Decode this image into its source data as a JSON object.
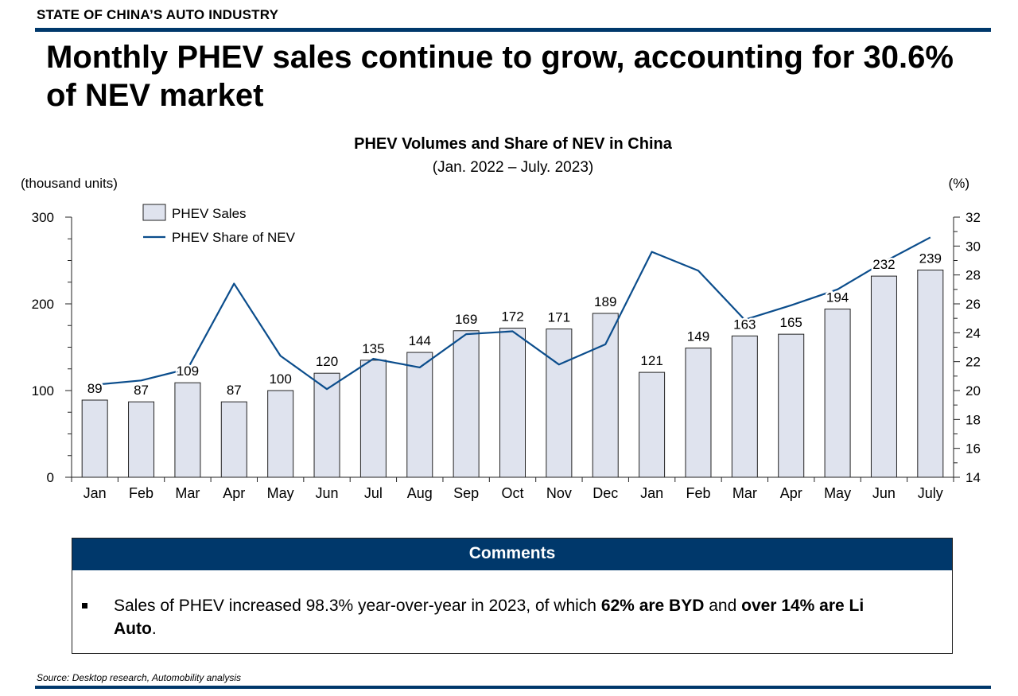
{
  "header": {
    "section": "STATE OF CHINA’S AUTO INDUSTRY",
    "headline": "Monthly PHEV sales continue to grow, accounting for 30.6% of NEV market"
  },
  "chart_data": {
    "type": "bar",
    "title": "PHEV Volumes and Share of NEV in China",
    "subtitle": "(Jan. 2022 – July. 2023)",
    "ylabel": "(thousand units)",
    "y2label": "(%)",
    "ylim": [
      0,
      300
    ],
    "y2lim": [
      14,
      32
    ],
    "yticks": [
      0,
      100,
      200,
      300
    ],
    "y2ticks": [
      14,
      16,
      18,
      20,
      22,
      24,
      26,
      28,
      30,
      32
    ],
    "categories": [
      "Jan",
      "Feb",
      "Mar",
      "Apr",
      "May",
      "Jun",
      "Jul",
      "Aug",
      "Sep",
      "Oct",
      "Nov",
      "Dec",
      "Jan",
      "Feb",
      "Mar",
      "Apr",
      "May",
      "Jun",
      "July"
    ],
    "legend_position": "top-left",
    "grid": false,
    "series": [
      {
        "name": "PHEV Sales",
        "type": "bar",
        "axis": "left",
        "color": "#dfe3ee",
        "values": [
          89,
          87,
          109,
          87,
          100,
          120,
          135,
          144,
          169,
          172,
          171,
          189,
          121,
          149,
          163,
          165,
          194,
          232,
          239
        ]
      },
      {
        "name": "PHEV Share of NEV",
        "type": "line",
        "axis": "right",
        "color": "#0b4d8c",
        "values": [
          20.4,
          20.7,
          21.5,
          27.4,
          22.4,
          20.1,
          22.2,
          21.6,
          23.9,
          24.1,
          21.8,
          23.2,
          29.6,
          28.3,
          24.9,
          25.9,
          27.0,
          28.9,
          30.6
        ]
      }
    ]
  },
  "comments": {
    "title": "Comments",
    "items": [
      {
        "t1": "Sales of PHEV increased 98.3% year-over-year in 2023, of which ",
        "b1": "62% are BYD",
        "t2": " and ",
        "b2": "over 14% are Li Auto",
        "t3": "."
      }
    ]
  },
  "footer": {
    "source": "Source: Desktop research, Automobility analysis"
  }
}
